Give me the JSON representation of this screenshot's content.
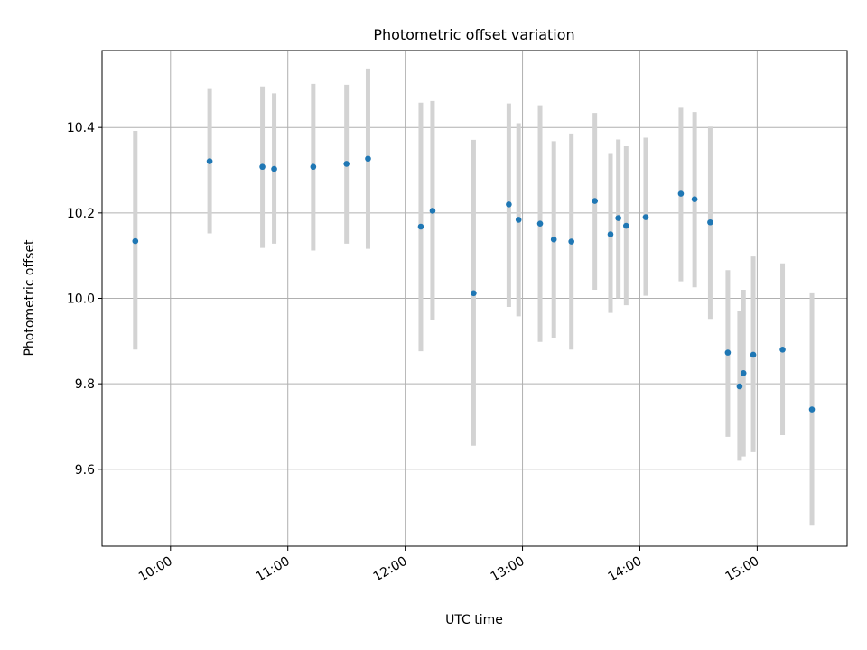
{
  "chart_data": {
    "type": "scatter",
    "title": "Photometric offset variation",
    "xlabel": "UTC time",
    "ylabel": "Photometric offset",
    "x_unit": "time",
    "xlim": [
      "09:25",
      "15:46"
    ],
    "ylim": [
      9.42,
      10.58
    ],
    "xticks": [
      "10:00",
      "11:00",
      "12:00",
      "13:00",
      "14:00",
      "15:00"
    ],
    "yticks": [
      9.6,
      9.8,
      10.0,
      10.2,
      10.4
    ],
    "ytick_labels": [
      "9.6",
      "9.8",
      "10.0",
      "10.2",
      "10.4"
    ],
    "grid": true,
    "legend": "none",
    "colors": {
      "point": "#1f77b4",
      "errorbar": "#d3d3d3",
      "grid": "#b0b0b0",
      "axes": "#000000"
    },
    "points": [
      {
        "x": "09:42",
        "y": 10.134,
        "err": [
          9.88,
          10.392
        ]
      },
      {
        "x": "10:20",
        "y": 10.321,
        "err": [
          10.152,
          10.49
        ]
      },
      {
        "x": "10:47",
        "y": 10.308,
        "err": [
          10.118,
          10.496
        ]
      },
      {
        "x": "10:53",
        "y": 10.303,
        "err": [
          10.128,
          10.48
        ]
      },
      {
        "x": "11:13",
        "y": 10.308,
        "err": [
          10.112,
          10.502
        ]
      },
      {
        "x": "11:30",
        "y": 10.315,
        "err": [
          10.128,
          10.5
        ]
      },
      {
        "x": "11:41",
        "y": 10.327,
        "err": [
          10.116,
          10.538
        ]
      },
      {
        "x": "12:08",
        "y": 10.168,
        "err": [
          9.876,
          10.458
        ]
      },
      {
        "x": "12:14",
        "y": 10.205,
        "err": [
          9.95,
          10.462
        ]
      },
      {
        "x": "12:35",
        "y": 10.012,
        "err": [
          9.655,
          10.371
        ]
      },
      {
        "x": "12:53",
        "y": 10.22,
        "err": [
          9.98,
          10.456
        ]
      },
      {
        "x": "12:58",
        "y": 10.184,
        "err": [
          9.958,
          10.41
        ]
      },
      {
        "x": "13:09",
        "y": 10.175,
        "err": [
          9.898,
          10.452
        ]
      },
      {
        "x": "13:16",
        "y": 10.138,
        "err": [
          9.908,
          10.368
        ]
      },
      {
        "x": "13:25",
        "y": 10.133,
        "err": [
          9.88,
          10.386
        ]
      },
      {
        "x": "13:37",
        "y": 10.228,
        "err": [
          10.02,
          10.434
        ]
      },
      {
        "x": "13:45",
        "y": 10.15,
        "err": [
          9.966,
          10.338
        ]
      },
      {
        "x": "13:49",
        "y": 10.188,
        "err": [
          10.0,
          10.372
        ]
      },
      {
        "x": "13:53",
        "y": 10.17,
        "err": [
          9.984,
          10.356
        ]
      },
      {
        "x": "14:03",
        "y": 10.19,
        "err": [
          10.006,
          10.376
        ]
      },
      {
        "x": "14:21",
        "y": 10.245,
        "err": [
          10.04,
          10.446
        ]
      },
      {
        "x": "14:28",
        "y": 10.232,
        "err": [
          10.026,
          10.436
        ]
      },
      {
        "x": "14:36",
        "y": 10.178,
        "err": [
          9.952,
          10.402
        ]
      },
      {
        "x": "14:45",
        "y": 9.873,
        "err": [
          9.676,
          10.066
        ]
      },
      {
        "x": "14:51",
        "y": 9.794,
        "err": [
          9.62,
          9.97
        ]
      },
      {
        "x": "14:53",
        "y": 9.825,
        "err": [
          9.63,
          10.02
        ]
      },
      {
        "x": "14:58",
        "y": 9.868,
        "err": [
          9.64,
          10.098
        ]
      },
      {
        "x": "15:13",
        "y": 9.88,
        "err": [
          9.68,
          10.082
        ]
      },
      {
        "x": "15:28",
        "y": 9.74,
        "err": [
          9.468,
          10.012
        ]
      }
    ]
  }
}
